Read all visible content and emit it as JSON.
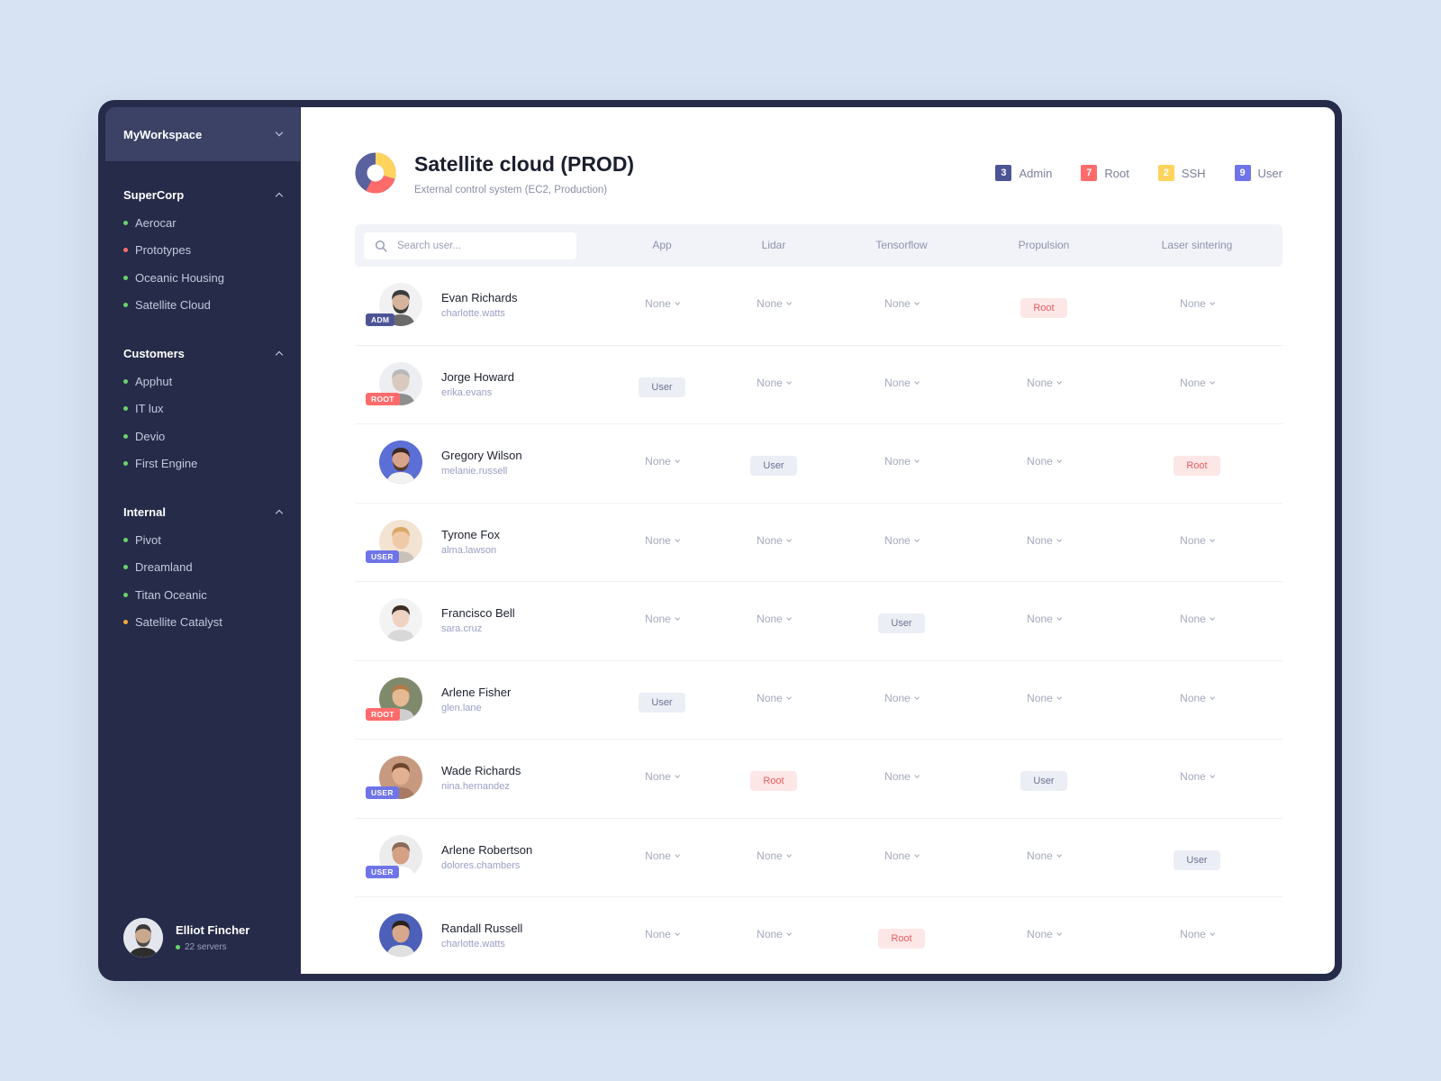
{
  "workspace": {
    "label": "MyWorkspace"
  },
  "sidebar": {
    "groups": [
      {
        "title": "SuperCorp",
        "items": [
          {
            "label": "Aerocar",
            "color": "#6bd36b"
          },
          {
            "label": "Prototypes",
            "color": "#ff6b6b"
          },
          {
            "label": "Oceanic Housing",
            "color": "#6bd36b"
          },
          {
            "label": "Satellite Cloud",
            "color": "#6bd36b"
          }
        ]
      },
      {
        "title": "Customers",
        "items": [
          {
            "label": "Apphut",
            "color": "#6bd36b"
          },
          {
            "label": "IT lux",
            "color": "#6bd36b"
          },
          {
            "label": "Devio",
            "color": "#6bd36b"
          },
          {
            "label": "First Engine",
            "color": "#6bd36b"
          }
        ]
      },
      {
        "title": "Internal",
        "items": [
          {
            "label": "Pivot",
            "color": "#6bd36b"
          },
          {
            "label": "Dreamland",
            "color": "#6bd36b"
          },
          {
            "label": "Titan Oceanic",
            "color": "#6bd36b"
          },
          {
            "label": "Satellite Catalyst",
            "color": "#ffa63d"
          }
        ]
      }
    ],
    "user": {
      "name": "Elliot Fincher",
      "servers": "22 servers",
      "status_color": "#6bd36b"
    }
  },
  "header": {
    "title": "Satellite cloud (PROD)",
    "subtitle": "External control system (EC2, Production)",
    "legend": [
      {
        "count": "3",
        "label": "Admin",
        "color": "#4d5496"
      },
      {
        "count": "7",
        "label": "Root",
        "color": "#ff6b6b"
      },
      {
        "count": "2",
        "label": "SSH",
        "color": "#ffd35c"
      },
      {
        "count": "9",
        "label": "User",
        "color": "#6f74e8"
      }
    ]
  },
  "search": {
    "placeholder": "Search user..."
  },
  "columns": [
    "App",
    "Lidar",
    "Tensorflow",
    "Propulsion",
    "Laser sintering"
  ],
  "users": [
    {
      "name": "Evan Richards",
      "handle": "charlotte.watts",
      "tag": "ADM",
      "tag_color": "#4d5496",
      "perms": [
        "None",
        "None",
        "None",
        "Root",
        "None"
      ]
    },
    {
      "name": "Jorge Howard",
      "handle": "erika.evans",
      "tag": "ROOT",
      "tag_color": "#ff6b6b",
      "perms": [
        "User",
        "None",
        "None",
        "None",
        "None"
      ]
    },
    {
      "name": "Gregory Wilson",
      "handle": "melanie.russell",
      "tag": "",
      "tag_color": "",
      "perms": [
        "None",
        "User",
        "None",
        "None",
        "Root"
      ]
    },
    {
      "name": "Tyrone Fox",
      "handle": "alma.lawson",
      "tag": "USER",
      "tag_color": "#6f74e8",
      "perms": [
        "None",
        "None",
        "None",
        "None",
        "None"
      ]
    },
    {
      "name": "Francisco Bell",
      "handle": "sara.cruz",
      "tag": "",
      "tag_color": "",
      "perms": [
        "None",
        "None",
        "User",
        "None",
        "None"
      ]
    },
    {
      "name": "Arlene Fisher",
      "handle": "glen.lane",
      "tag": "ROOT",
      "tag_color": "#ff6b6b",
      "perms": [
        "User",
        "None",
        "None",
        "None",
        "None"
      ]
    },
    {
      "name": "Wade Richards",
      "handle": "nina.hernandez",
      "tag": "USER",
      "tag_color": "#6f74e8",
      "perms": [
        "None",
        "Root",
        "None",
        "User",
        "None"
      ]
    },
    {
      "name": "Arlene Robertson",
      "handle": "dolores.chambers",
      "tag": "USER",
      "tag_color": "#6f74e8",
      "perms": [
        "None",
        "None",
        "None",
        "None",
        "User"
      ]
    },
    {
      "name": "Randall Russell",
      "handle": "charlotte.watts",
      "tag": "",
      "tag_color": "",
      "perms": [
        "None",
        "None",
        "Root",
        "None",
        "None"
      ]
    }
  ],
  "icons": {
    "workspace": "chevron-down-icon",
    "group_toggle": "chevron-up-icon",
    "search": "search-icon",
    "logo": "donut-chart-icon",
    "cell_dropdown": "chevron-down-icon"
  }
}
